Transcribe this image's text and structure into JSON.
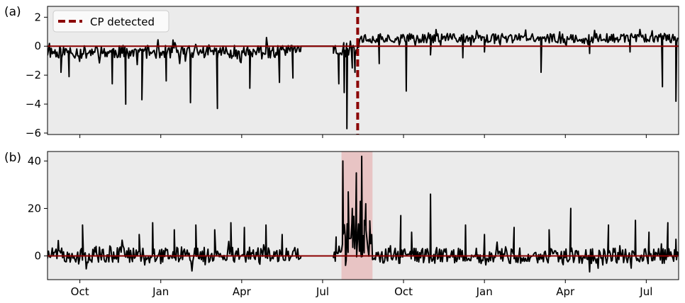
{
  "chart_data": [
    {
      "type": "line",
      "panel_label": "(a)",
      "xlabel": "",
      "ylabel": "",
      "x_range": [
        -1.2,
        22.2
      ],
      "ylim": [
        -6.1,
        2.75
      ],
      "yticks": [
        2,
        0,
        -2,
        -4,
        -6
      ],
      "ytick_labels": [
        "2",
        "0",
        "−2",
        "−4",
        "−6"
      ],
      "grid": false,
      "background": "#ebebeb",
      "legend": {
        "position": "top-left",
        "entries": [
          "CP detected"
        ]
      },
      "reference_line": {
        "y": 0,
        "color": "#8b0000"
      },
      "changepoint": {
        "x": 10.3,
        "label": "CP detected",
        "color": "#8b0000",
        "style": "dashed"
      },
      "series": [
        {
          "color": "#000000",
          "segments": [
            {
              "x_start": -1.2,
              "x_end": 8.2,
              "mean": -0.4,
              "noise": 0.45,
              "seed": 11,
              "spikes": [
                [
                  -0.7,
                  -1.8
                ],
                [
                  -0.4,
                  -2.1
                ],
                [
                  1.2,
                  -2.6
                ],
                [
                  1.7,
                  -4.0
                ],
                [
                  2.3,
                  -3.7
                ],
                [
                  3.2,
                  -2.4
                ],
                [
                  4.1,
                  -3.9
                ],
                [
                  5.1,
                  -4.3
                ],
                [
                  6.3,
                  -2.9
                ],
                [
                  7.4,
                  -2.5
                ],
                [
                  7.9,
                  -2.2
                ]
              ]
            },
            {
              "x_start": 8.2,
              "x_end": 9.4,
              "mean": 0.0,
              "noise": 0.0,
              "seed": 1,
              "spikes": []
            },
            {
              "x_start": 9.4,
              "x_end": 10.3,
              "mean": -0.2,
              "noise": 0.55,
              "seed": 23,
              "spikes": [
                [
                  9.6,
                  -2.6
                ],
                [
                  9.8,
                  -3.2
                ],
                [
                  9.9,
                  -5.7
                ],
                [
                  10.1,
                  -1.5
                ],
                [
                  10.2,
                  -1.8
                ]
              ]
            },
            {
              "x_start": 10.3,
              "x_end": 22.2,
              "mean": 0.55,
              "noise": 0.32,
              "seed": 37,
              "spikes": [
                [
                  11.1,
                  -1.2
                ],
                [
                  12.1,
                  -3.1
                ],
                [
                  13.0,
                  -0.6
                ],
                [
                  14.2,
                  -0.8
                ],
                [
                  15.0,
                  -0.4
                ],
                [
                  17.1,
                  -1.8
                ],
                [
                  18.9,
                  -0.5
                ],
                [
                  20.4,
                  -0.4
                ],
                [
                  21.6,
                  -2.8
                ],
                [
                  22.1,
                  -3.8
                ]
              ]
            }
          ]
        }
      ]
    },
    {
      "type": "line",
      "panel_label": "(b)",
      "xlabel": "",
      "ylabel": "",
      "x_range": [
        -1.2,
        22.2
      ],
      "ylim": [
        -10,
        44
      ],
      "yticks": [
        40,
        20,
        0
      ],
      "ytick_labels": [
        "40",
        "20",
        "0"
      ],
      "grid": false,
      "background": "#ebebeb",
      "reference_line": {
        "y": 0,
        "color": "#8b0000"
      },
      "highlight_band": {
        "x_start": 9.7,
        "x_end": 10.85,
        "color": "#e8c4c4"
      },
      "series": [
        {
          "color": "#000000",
          "segments": [
            {
              "x_start": -1.2,
              "x_end": 8.2,
              "mean": 0.5,
              "noise": 3.2,
              "seed": 51,
              "spikes": [
                [
                  -0.8,
                  6.5
                ],
                [
                  0.1,
                  13.0
                ],
                [
                  0.6,
                  4.0
                ],
                [
                  2.2,
                  9.0
                ],
                [
                  2.7,
                  14.0
                ],
                [
                  3.5,
                  11.0
                ],
                [
                  4.3,
                  13.0
                ],
                [
                  5.0,
                  11.0
                ],
                [
                  5.6,
                  14.0
                ],
                [
                  6.1,
                  12.0
                ],
                [
                  6.9,
                  13.0
                ],
                [
                  7.5,
                  9.0
                ]
              ]
            },
            {
              "x_start": 8.2,
              "x_end": 9.4,
              "mean": 0.0,
              "noise": 0.0,
              "seed": 2,
              "spikes": []
            },
            {
              "x_start": 9.4,
              "x_end": 9.7,
              "mean": 1.0,
              "noise": 3.5,
              "seed": 61,
              "spikes": [
                [
                  9.5,
                  8.0
                ]
              ]
            },
            {
              "x_start": 9.7,
              "x_end": 10.85,
              "mean": 6.0,
              "noise": 8.0,
              "seed": 71,
              "spikes": [
                [
                  9.75,
                  40.0
                ],
                [
                  9.85,
                  -4.0
                ],
                [
                  9.95,
                  27.0
                ],
                [
                  10.1,
                  20.0
                ],
                [
                  10.25,
                  35.0
                ],
                [
                  10.4,
                  23.0
                ],
                [
                  10.45,
                  42.0
                ],
                [
                  10.55,
                  15.0
                ],
                [
                  10.6,
                  22.0
                ],
                [
                  10.75,
                  12.0
                ]
              ]
            },
            {
              "x_start": 10.85,
              "x_end": 22.2,
              "mean": 0.0,
              "noise": 3.3,
              "seed": 81,
              "spikes": [
                [
                  11.9,
                  17.0
                ],
                [
                  12.3,
                  10.0
                ],
                [
                  13.0,
                  26.0
                ],
                [
                  14.3,
                  13.0
                ],
                [
                  15.0,
                  9.0
                ],
                [
                  16.1,
                  12.0
                ],
                [
                  17.4,
                  11.0
                ],
                [
                  18.2,
                  20.0
                ],
                [
                  19.6,
                  13.0
                ],
                [
                  20.6,
                  15.0
                ],
                [
                  21.1,
                  10.0
                ],
                [
                  21.8,
                  14.0
                ],
                [
                  22.1,
                  7.0
                ]
              ]
            }
          ]
        }
      ]
    }
  ],
  "x_axis": {
    "tick_positions": [
      0,
      3,
      6,
      9,
      12,
      15,
      18,
      21
    ],
    "tick_labels": [
      "Oct",
      "Jan",
      "Apr",
      "Jul",
      "Oct",
      "Jan",
      "Apr",
      "Jul"
    ]
  }
}
